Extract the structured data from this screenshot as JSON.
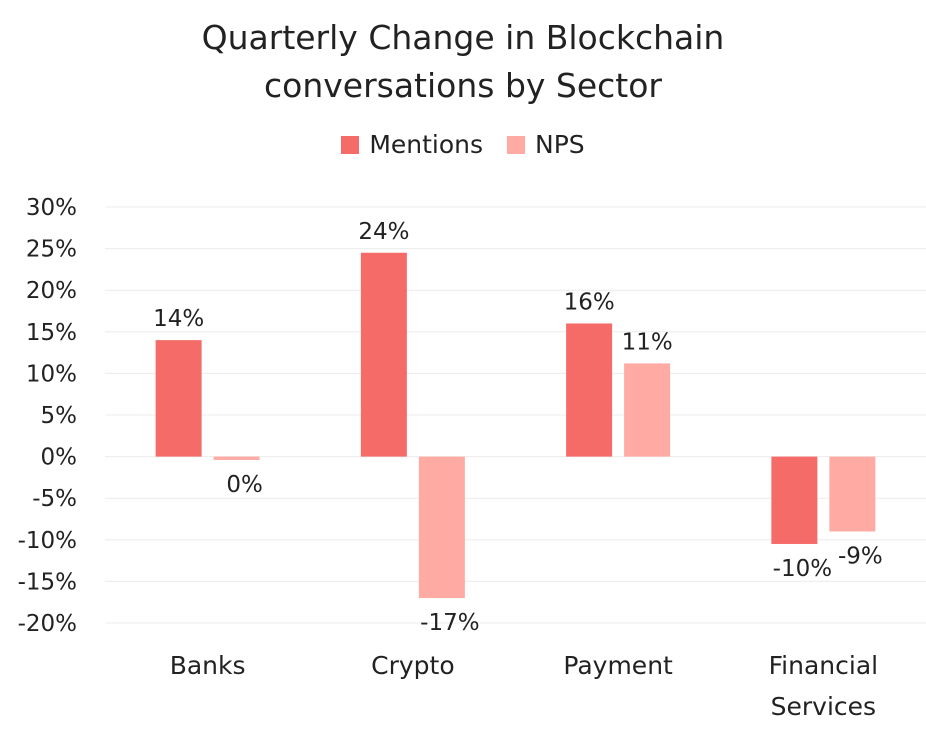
{
  "chart_data": {
    "type": "bar",
    "title_lines": [
      "Quarterly Change in Blockchain",
      "conversations by Sector"
    ],
    "categories": [
      [
        "Banks"
      ],
      [
        "Crypto"
      ],
      [
        "Payment"
      ],
      [
        "Financial",
        "Services"
      ]
    ],
    "series": [
      {
        "name": "Mentions",
        "color": "#f56b67",
        "values": [
          14,
          24.5,
          16,
          -10.5
        ],
        "labels": [
          "14%",
          "24%",
          "16%",
          "-10%"
        ]
      },
      {
        "name": "NPS",
        "color": "#ffaba3",
        "values": [
          -0.4,
          -17,
          11.2,
          -9
        ],
        "labels": [
          "0%",
          "-17%",
          "11%",
          "-9%"
        ]
      }
    ],
    "ylim": [
      -20,
      30
    ],
    "yticks": [
      30,
      25,
      20,
      15,
      10,
      5,
      0,
      -5,
      -10,
      -15,
      -20
    ],
    "ytick_labels": [
      "30%",
      "25%",
      "20%",
      "15%",
      "10%",
      "5%",
      "0%",
      "-5%",
      "-10%",
      "-15%",
      "-20%"
    ],
    "xlabel": "",
    "ylabel": "",
    "grid": true,
    "legend_position": "top-center"
  }
}
